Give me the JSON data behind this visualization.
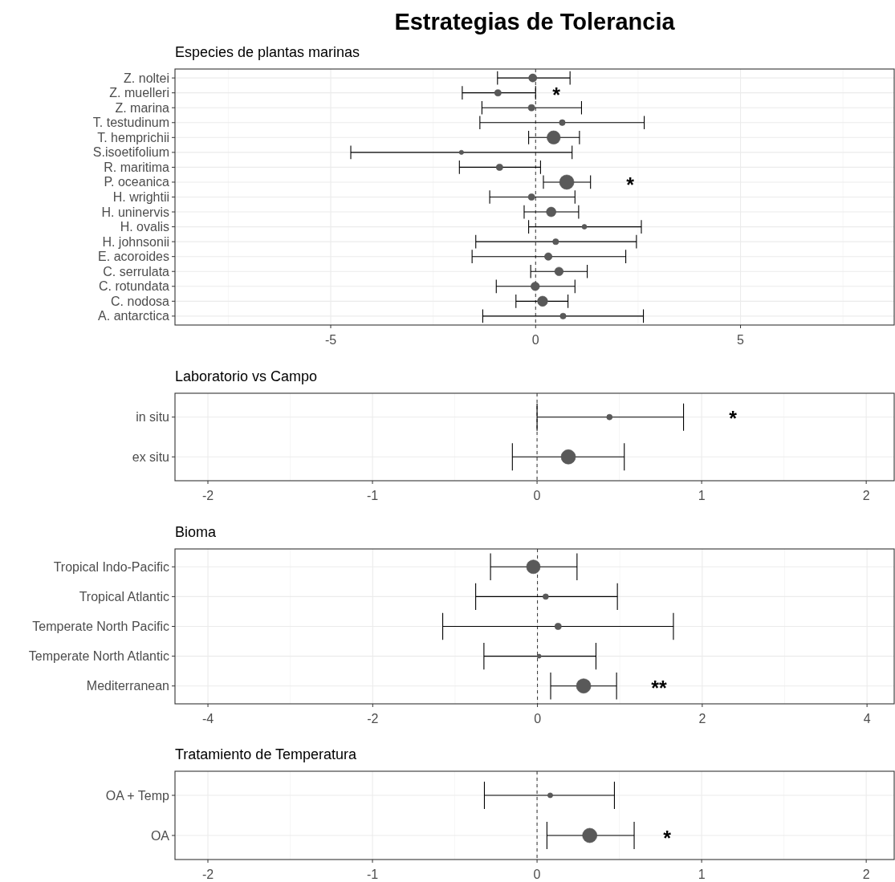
{
  "chart_data": [
    {
      "type": "bubble",
      "title": "Estrategias de Tolerancia",
      "subtitle": "Especies de plantas marinas",
      "orientation": "horizontal",
      "categories": [
        "Z. noltei",
        "Z. muelleri",
        "Z. marina",
        "T. testudinum",
        "T. hemprichii",
        "S.isoetifolium",
        "R. maritima",
        "P. oceanica",
        "H. wrightii",
        "H. uninervis",
        "H. ovalis",
        "H. johnsonii",
        "E. acoroides",
        "C. serrulata",
        "C. rotundata",
        "C. nodosa",
        "A. antarctica"
      ],
      "values": [
        -0.07,
        -0.92,
        -0.1,
        0.65,
        0.44,
        -1.81,
        -0.88,
        0.76,
        -0.1,
        0.38,
        1.19,
        0.49,
        0.31,
        0.57,
        -0.01,
        0.17,
        0.67
      ],
      "sizes": [
        0.31,
        0.2,
        0.2,
        0.17,
        0.85,
        0.09,
        0.2,
        1,
        0.2,
        0.44,
        0.11,
        0.17,
        0.27,
        0.35,
        0.35,
        0.49,
        0.17
      ],
      "errors": [
        [
          -0.93,
          0.84
        ],
        [
          -1.79,
          0.0
        ],
        [
          -1.31,
          1.12
        ],
        [
          -1.36,
          2.65
        ],
        [
          -0.17,
          1.07
        ],
        [
          -4.51,
          0.89
        ],
        [
          -1.86,
          0.12
        ],
        [
          0.19,
          1.34
        ],
        [
          -1.12,
          0.96
        ],
        [
          -0.28,
          1.05
        ],
        [
          -0.17,
          2.58
        ],
        [
          -1.46,
          2.46
        ],
        [
          -1.55,
          2.2
        ],
        [
          -0.12,
          1.26
        ],
        [
          -0.96,
          0.96
        ],
        [
          -0.48,
          0.79
        ],
        [
          -1.29,
          2.63
        ]
      ],
      "color": "#595959",
      "xlim": [
        -8.8,
        8.75
      ],
      "xticks": [
        -5,
        0,
        5
      ],
      "grid": true,
      "marker": "circle",
      "ref_lines": [
        {
          "axis": "x",
          "value": 0,
          "line_style": "dashed"
        }
      ],
      "annotations": [
        "*",
        "*"
      ]
    },
    {
      "type": "bubble",
      "title": "Laboratorio vs Campo",
      "orientation": "horizontal",
      "categories": [
        "in situ",
        "ex situ"
      ],
      "values": [
        0.44,
        0.19
      ],
      "sizes": [
        0.15,
        1
      ],
      "errors": [
        [
          0.0,
          0.89
        ],
        [
          -0.15,
          0.53
        ]
      ],
      "color": "#595959",
      "xlim": [
        -2.2,
        2.17
      ],
      "xticks": [
        -2,
        -1,
        0,
        1,
        2
      ],
      "grid": true,
      "marker": "circle",
      "ref_lines": [
        {
          "axis": "x",
          "value": 0,
          "line_style": "dashed"
        }
      ],
      "annotations": [
        "*"
      ]
    },
    {
      "type": "bubble",
      "title": "Bioma",
      "orientation": "horizontal",
      "categories": [
        "Tropical Indo-Pacific",
        "Tropical Atlantic",
        "Temperate North Pacific",
        "Temperate North Atlantic",
        "Mediterranean"
      ],
      "values": [
        -0.05,
        0.1,
        0.25,
        0.02,
        0.56
      ],
      "sizes": [
        0.9,
        0.15,
        0.2,
        0.08,
        1
      ],
      "errors": [
        [
          -0.57,
          0.48
        ],
        [
          -0.75,
          0.97
        ],
        [
          -1.15,
          1.65
        ],
        [
          -0.65,
          0.71
        ],
        [
          0.16,
          0.96
        ]
      ],
      "color": "#595959",
      "xlim": [
        -4.4,
        4.33
      ],
      "xticks": [
        -4,
        -2,
        0,
        2,
        4
      ],
      "grid": true,
      "marker": "circle",
      "ref_lines": [
        {
          "axis": "x",
          "value": 0,
          "line_style": "dashed"
        }
      ],
      "annotations": [
        "**"
      ]
    },
    {
      "type": "bubble",
      "title": "Tratamiento de Temperatura",
      "orientation": "horizontal",
      "categories": [
        "OA + Temp",
        "OA"
      ],
      "values": [
        0.08,
        0.32
      ],
      "sizes": [
        0.12,
        1
      ],
      "errors": [
        [
          -0.32,
          0.47
        ],
        [
          0.06,
          0.59
        ]
      ],
      "color": "#595959",
      "xlim": [
        -2.2,
        2.17
      ],
      "xticks": [
        -2,
        -1,
        0,
        1,
        2
      ],
      "grid": true,
      "marker": "circle",
      "ref_lines": [
        {
          "axis": "x",
          "value": 0,
          "line_style": "dashed"
        }
      ],
      "annotations": [
        "*"
      ]
    }
  ]
}
